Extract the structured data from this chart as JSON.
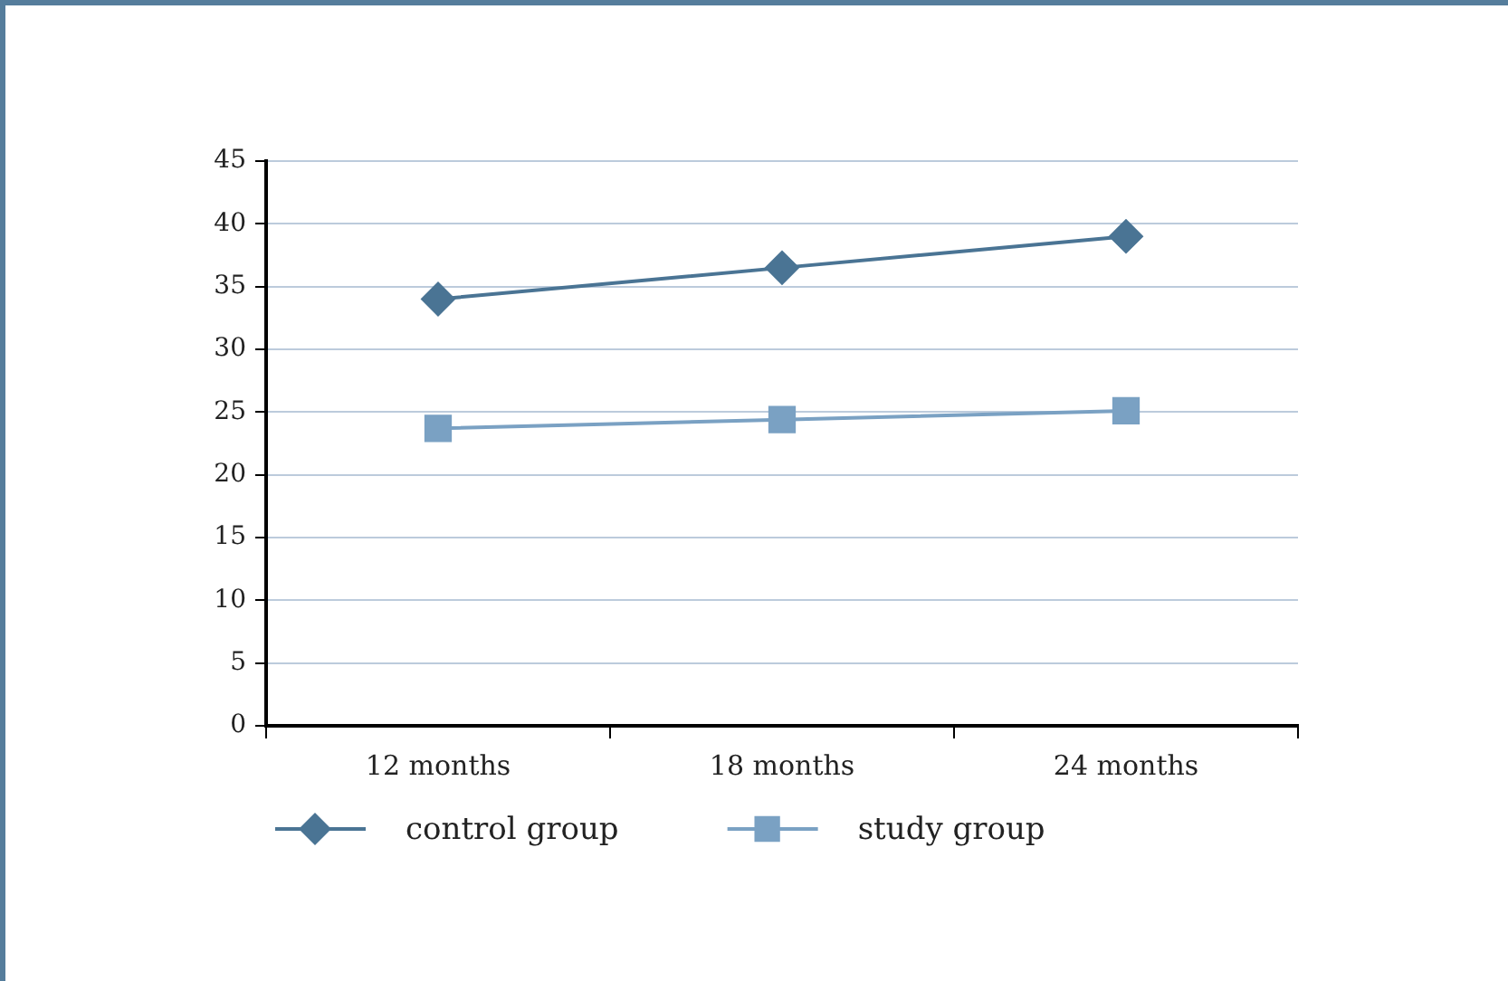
{
  "chart_data": {
    "type": "line",
    "categories": [
      "12 months",
      "18 months",
      "24 months"
    ],
    "series": [
      {
        "name": "control group",
        "color": "#4a7494",
        "marker": "diamond",
        "values": [
          34,
          36.5,
          39
        ]
      },
      {
        "name": "study group",
        "color": "#7aa1c3",
        "marker": "square",
        "values": [
          23.7,
          24.4,
          25.1
        ]
      }
    ],
    "ylim": [
      0,
      45
    ],
    "yticks": [
      0,
      5,
      10,
      15,
      20,
      25,
      30,
      35,
      40,
      45
    ],
    "grid": "y",
    "legend": "bottom",
    "line_style": "solid"
  }
}
